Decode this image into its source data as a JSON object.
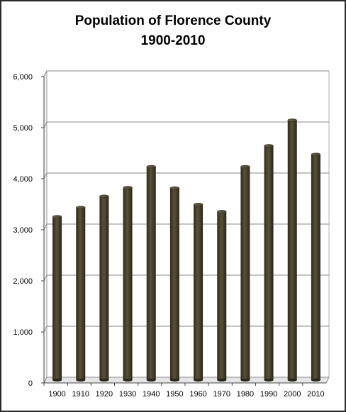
{
  "chart_data": {
    "type": "bar",
    "title_line1": "Population of Florence County",
    "title_line2": "1900-2010",
    "categories": [
      "1900",
      "1910",
      "1920",
      "1930",
      "1940",
      "1950",
      "1960",
      "1970",
      "1980",
      "1990",
      "2000",
      "2010"
    ],
    "values": [
      3200,
      3380,
      3600,
      3770,
      4180,
      3760,
      3440,
      3300,
      4180,
      4590,
      5090,
      4420
    ],
    "yticks": [
      "0",
      "1,000",
      "2,000",
      "3,000",
      "4,000",
      "5,000",
      "6,000"
    ],
    "ylim": [
      0,
      6000
    ],
    "grid": true,
    "legend": "none",
    "bar_color": "#4a4330"
  }
}
